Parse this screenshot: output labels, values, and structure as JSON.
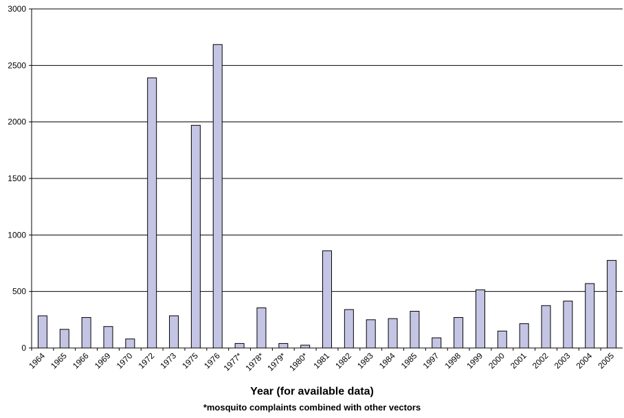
{
  "chart_data": {
    "type": "bar",
    "title": "",
    "xlabel": "Year (for available data)",
    "note": "*mosquito complaints combined with other vectors",
    "ylabel": "",
    "ylim": [
      0,
      3000
    ],
    "yticks": [
      0,
      500,
      1000,
      1500,
      2000,
      2500,
      3000
    ],
    "grid": true,
    "bar_color": "#c4c4e4",
    "categories": [
      "1964",
      "1965",
      "1966",
      "1969",
      "1970",
      "1972",
      "1973",
      "1975",
      "1976",
      "1977*",
      "1978*",
      "1979*",
      "1980*",
      "1981",
      "1982",
      "1983",
      "1984",
      "1985",
      "1997",
      "1998",
      "1999",
      "2000",
      "2001",
      "2002",
      "2003",
      "2004",
      "2005"
    ],
    "values": [
      285,
      165,
      270,
      190,
      80,
      2390,
      285,
      1970,
      2685,
      40,
      355,
      40,
      25,
      860,
      340,
      250,
      260,
      325,
      90,
      270,
      515,
      150,
      215,
      375,
      415,
      570,
      775
    ]
  }
}
